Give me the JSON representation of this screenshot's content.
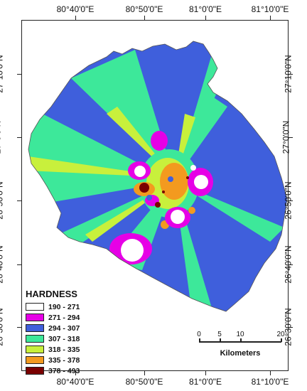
{
  "map": {
    "longitude_labels": [
      "80°40'0\"E",
      "80°50'0\"E",
      "81°0'0\"E",
      "81°10'0\"E"
    ],
    "latitude_labels": [
      "27°10'0\"N",
      "27°0'0\"N",
      "26°50'0\"N",
      "26°40'0\"N",
      "26°30'0\"N"
    ]
  },
  "legend": {
    "title": "HARDNESS",
    "items": [
      {
        "label": "190 - 271",
        "color": "#ffffff"
      },
      {
        "label": "271 - 294",
        "color": "#e600e6"
      },
      {
        "label": "294 - 307",
        "color": "#3f5fdc"
      },
      {
        "label": "307 - 318",
        "color": "#3de89a"
      },
      {
        "label": "318 - 335",
        "color": "#c8f03c"
      },
      {
        "label": "335 - 378",
        "color": "#f39a1f"
      },
      {
        "label": "378 - 493",
        "color": "#7a0000"
      }
    ]
  },
  "scalebar": {
    "ticks": [
      "0",
      "5",
      "10",
      "20"
    ],
    "unit": "Kilometers"
  }
}
